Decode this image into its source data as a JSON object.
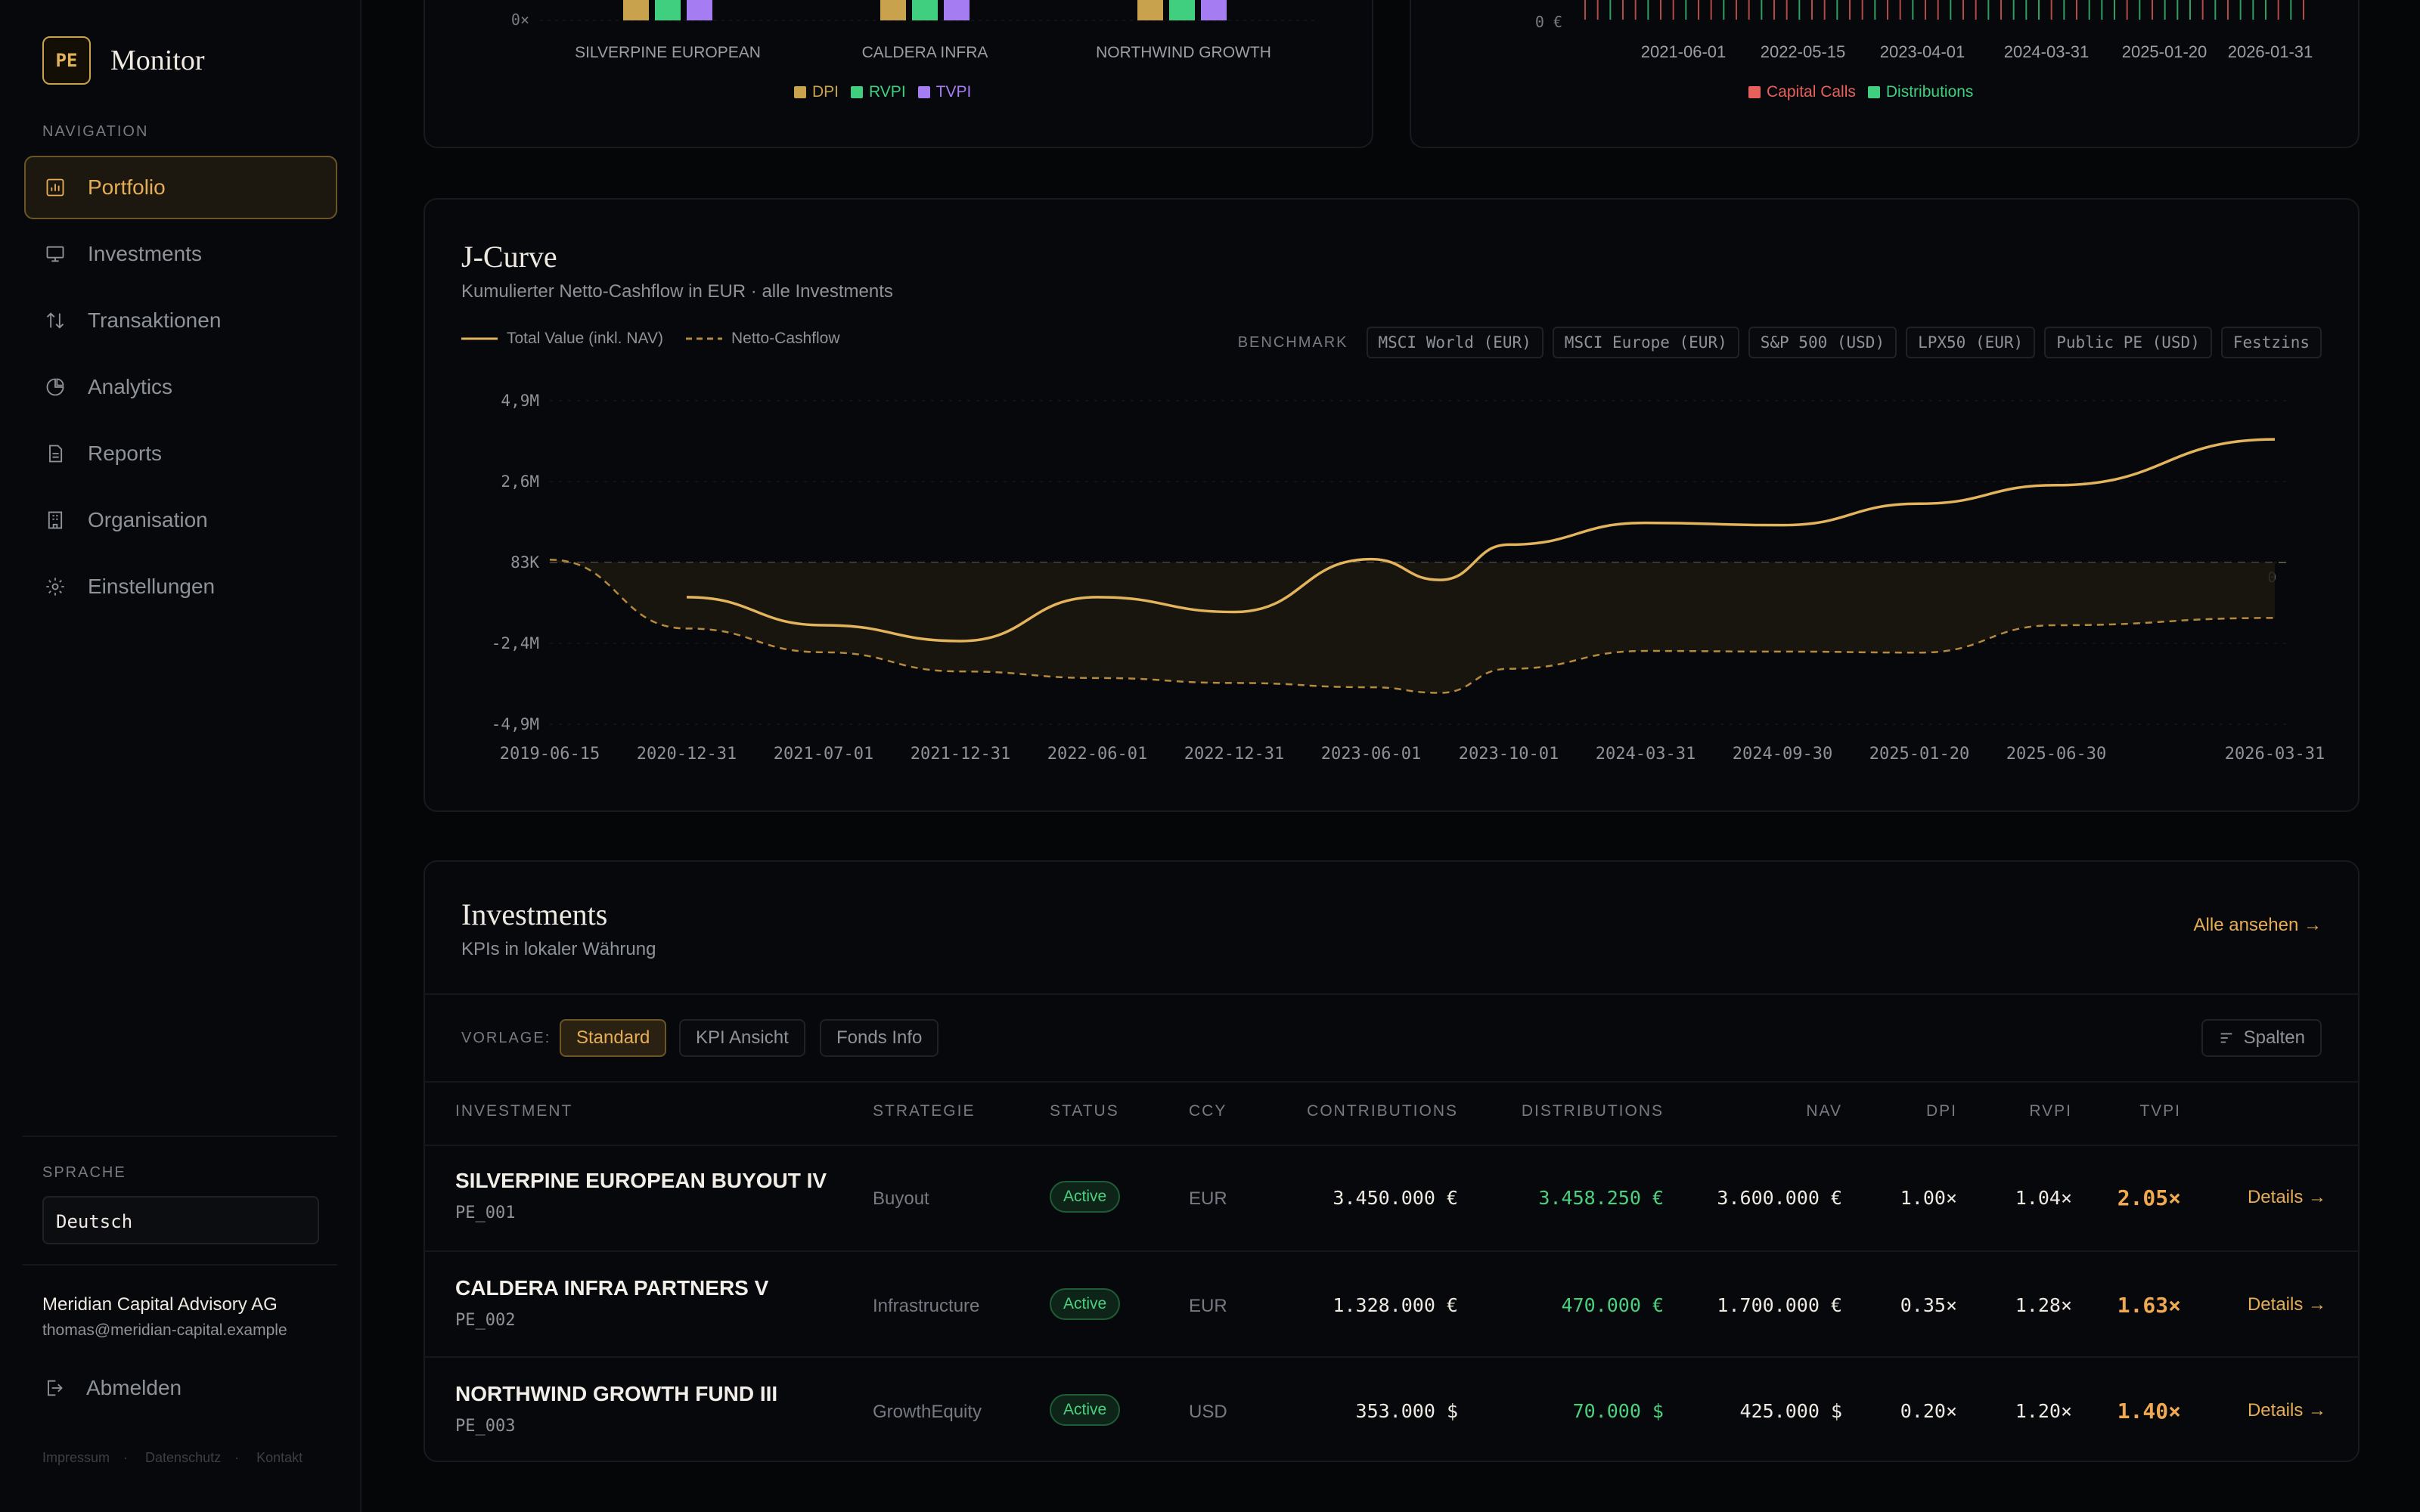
{
  "brand": {
    "badge": "PE",
    "name": "Monitor"
  },
  "nav": {
    "label": "NAVIGATION",
    "items": [
      {
        "label": "Portfolio",
        "icon": "chart-bar-icon",
        "active": true
      },
      {
        "label": "Investments",
        "icon": "presentation-icon",
        "active": false
      },
      {
        "label": "Transaktionen",
        "icon": "arrows-up-down-icon",
        "active": false
      },
      {
        "label": "Analytics",
        "icon": "pie-chart-icon",
        "active": false
      },
      {
        "label": "Reports",
        "icon": "document-icon",
        "active": false
      },
      {
        "label": "Organisation",
        "icon": "building-icon",
        "active": false
      },
      {
        "label": "Einstellungen",
        "icon": "gear-icon",
        "active": false
      }
    ]
  },
  "language": {
    "label": "SPRACHE",
    "value": "Deutsch"
  },
  "user": {
    "company": "Meridian Capital Advisory AG",
    "email": "thomas@meridian-capital.example"
  },
  "logout_label": "Abmelden",
  "footer": {
    "imprint": "Impressum",
    "privacy": "Datenschutz",
    "contact": "Kontakt"
  },
  "multiples_chart": {
    "y_tick": "0×",
    "categories": [
      "SILVERPINE EUROPEAN",
      "CALDERA INFRA",
      "NORTHWIND GROWTH"
    ],
    "legend": [
      {
        "name": "DPI",
        "color": "#c9a24e"
      },
      {
        "name": "RVPI",
        "color": "#3fcf7f"
      },
      {
        "name": "TVPI",
        "color": "#a57cf2"
      }
    ]
  },
  "cashflow_chart": {
    "y_tick": "0 €",
    "x_ticks": [
      "2021-06-01",
      "2022-05-15",
      "2023-04-01",
      "2024-03-31",
      "2025-01-20",
      "2026-01-31"
    ],
    "legend": [
      {
        "name": "Capital Calls",
        "color": "#e8605c"
      },
      {
        "name": "Distributions",
        "color": "#3fcf7f"
      }
    ]
  },
  "jcurve": {
    "title": "J-Curve",
    "subtitle": "Kumulierter Netto-Cashflow in EUR · alle Investments",
    "legend_total": "Total Value (inkl. NAV)",
    "legend_net": "Netto-Cashflow",
    "benchmark_label": "BENCHMARK",
    "benchmarks": [
      "MSCI World (EUR)",
      "MSCI Europe (EUR)",
      "S&P 500 (USD)",
      "LPX50 (EUR)",
      "Public PE (USD)",
      "Festzins"
    ],
    "zero_label": "0"
  },
  "chart_data": {
    "type": "line",
    "y_ticks": [
      "4,9M",
      "2,6M",
      "83K",
      "-2,4M",
      "-4,9M"
    ],
    "x_ticks": [
      "2019-06-15",
      "2020-12-31",
      "2021-07-01",
      "2021-12-31",
      "2022-06-01",
      "2022-12-31",
      "2023-06-01",
      "2023-10-01",
      "2024-03-31",
      "2024-09-30",
      "2025-01-20",
      "2025-06-30",
      "2026-03-31"
    ],
    "ylim": [
      -4900000,
      4900000
    ],
    "series": [
      {
        "name": "Total Value (inkl. NAV)",
        "color": "#e3b45c",
        "values": [
          null,
          -1050000,
          -1900000,
          -2380000,
          -1050000,
          -1500000,
          100000,
          -530000,
          540000,
          1200000,
          1130000,
          1780000,
          2340000,
          3730000
        ]
      },
      {
        "name": "Netto-Cashflow",
        "color": "#b58a3e",
        "values": [
          83000,
          -2000000,
          -2720000,
          -3300000,
          -3500000,
          -3650000,
          -3780000,
          -3950000,
          -3220000,
          -2680000,
          -2700000,
          -2730000,
          -1900000,
          -1680000
        ]
      }
    ]
  },
  "investments": {
    "title": "Investments",
    "subtitle": "KPIs in lokaler Währung",
    "see_all": "Alle ansehen →",
    "preset_label": "VORLAGE:",
    "presets": [
      "Standard",
      "KPI Ansicht",
      "Fonds Info"
    ],
    "columns_button": "Spalten",
    "headers": [
      "INVESTMENT",
      "STRATEGIE",
      "STATUS",
      "CCY",
      "CONTRIBUTIONS",
      "DISTRIBUTIONS",
      "NAV",
      "DPI",
      "RVPI",
      "TVPI"
    ],
    "rows": [
      {
        "name": "SILVERPINE EUROPEAN BUYOUT IV",
        "id": "PE_001",
        "strategy": "Buyout",
        "status": "Active",
        "ccy": "EUR",
        "contributions": "3.450.000 €",
        "distributions": "3.458.250 €",
        "nav": "3.600.000 €",
        "dpi": "1.00×",
        "rvpi": "1.04×",
        "tvpi": "2.05×",
        "action": "Details →"
      },
      {
        "name": "CALDERA INFRA PARTNERS V",
        "id": "PE_002",
        "strategy": "Infrastructure",
        "status": "Active",
        "ccy": "EUR",
        "contributions": "1.328.000 €",
        "distributions": "470.000 €",
        "nav": "1.700.000 €",
        "dpi": "0.35×",
        "rvpi": "1.28×",
        "tvpi": "1.63×",
        "action": "Details →"
      },
      {
        "name": "NORTHWIND GROWTH FUND III",
        "id": "PE_003",
        "strategy": "GrowthEquity",
        "status": "Active",
        "ccy": "USD",
        "contributions": "353.000 $",
        "distributions": "70.000 $",
        "nav": "425.000 $",
        "dpi": "0.20×",
        "rvpi": "1.20×",
        "tvpi": "1.40×",
        "action": "Details →"
      }
    ]
  }
}
